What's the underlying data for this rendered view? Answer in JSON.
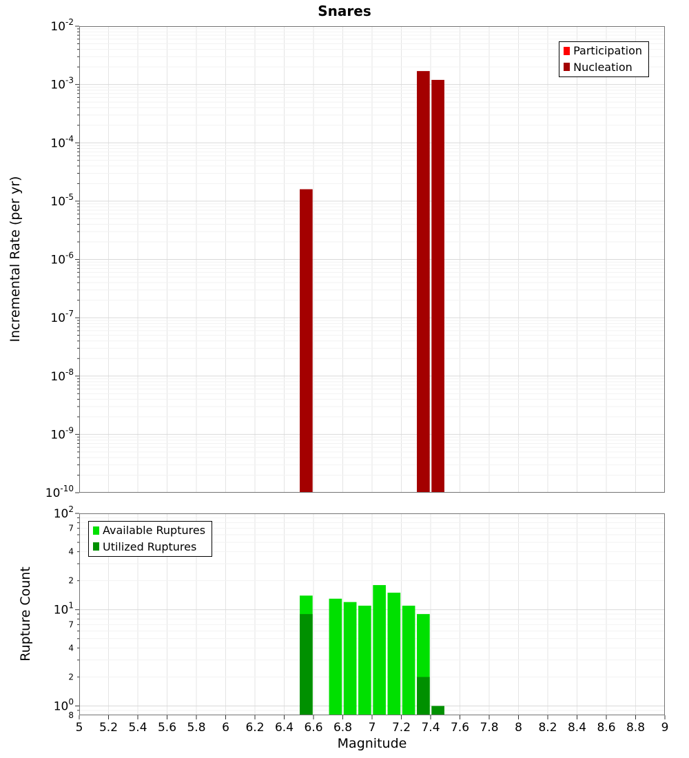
{
  "title": "Snares",
  "xlabel": "Magnitude",
  "chart_data": [
    {
      "type": "bar",
      "title": "Snares",
      "ylabel": "Incremental Rate (per yr)",
      "yscale": "log",
      "ylim": [
        1e-10,
        0.01
      ],
      "xlim": [
        5,
        9
      ],
      "xtick_step": 0.2,
      "bar_width": 0.1,
      "grid": true,
      "legend_position": "top-right",
      "legend": [
        {
          "label": "Participation",
          "color": "#ff0000"
        },
        {
          "label": "Nucleation",
          "color": "#a40000"
        }
      ],
      "series": [
        {
          "name": "Nucleation",
          "color": "#a40000",
          "points": [
            {
              "x": 6.55,
              "y": 1.6e-05
            },
            {
              "x": 7.35,
              "y": 0.0017
            },
            {
              "x": 7.45,
              "y": 0.0012
            }
          ]
        }
      ],
      "ytick_exponents": [
        -2,
        -3,
        -4,
        -5,
        -6,
        -7,
        -8,
        -9,
        -10
      ]
    },
    {
      "type": "bar",
      "ylabel": "Rupture Count",
      "xlabel": "Magnitude",
      "yscale": "log",
      "ylim": [
        0.8,
        100
      ],
      "xlim": [
        5,
        9
      ],
      "xtick_step": 0.2,
      "bar_width": 0.1,
      "grid": true,
      "legend_position": "top-left",
      "legend": [
        {
          "label": "Available Ruptures",
          "color": "#00e000"
        },
        {
          "label": "Utilized Ruptures",
          "color": "#009000"
        }
      ],
      "series": [
        {
          "name": "Available Ruptures",
          "color": "#00e000",
          "points": [
            {
              "x": 6.55,
              "y": 14
            },
            {
              "x": 6.75,
              "y": 13
            },
            {
              "x": 6.85,
              "y": 12
            },
            {
              "x": 6.95,
              "y": 11
            },
            {
              "x": 7.05,
              "y": 18
            },
            {
              "x": 7.15,
              "y": 15
            },
            {
              "x": 7.25,
              "y": 11
            },
            {
              "x": 7.35,
              "y": 9
            }
          ]
        },
        {
          "name": "Utilized Ruptures",
          "color": "#009000",
          "points": [
            {
              "x": 6.55,
              "y": 9
            },
            {
              "x": 7.35,
              "y": 2
            },
            {
              "x": 7.45,
              "y": 1
            }
          ]
        }
      ],
      "ytick_exponents": [
        2,
        1,
        0
      ],
      "ytick_minor": [
        {
          "value": 70,
          "label": "7"
        },
        {
          "value": 40,
          "label": "4"
        },
        {
          "value": 20,
          "label": "2"
        },
        {
          "value": 7,
          "label": "7"
        },
        {
          "value": 4,
          "label": "4"
        },
        {
          "value": 2,
          "label": "2"
        },
        {
          "value": 0.8,
          "label": "8"
        }
      ],
      "xtick_labels": [
        "5",
        "5.2",
        "5.4",
        "5.6",
        "5.8",
        "6",
        "6.2",
        "6.4",
        "6.6",
        "6.8",
        "7",
        "7.2",
        "7.4",
        "7.6",
        "7.8",
        "8",
        "8.2",
        "8.4",
        "8.6",
        "8.8",
        "9"
      ]
    }
  ]
}
